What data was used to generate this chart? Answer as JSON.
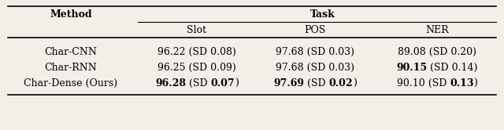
{
  "col_header_method": "Method",
  "col_header_task": "Task",
  "sub_headers": [
    "Slot",
    "POS",
    "NER"
  ],
  "rows": [
    {
      "method": "Char-CNN",
      "slot_normal": "96.22 (SD 0.08)",
      "slot_parts": null,
      "pos_normal": "97.68 (SD 0.03)",
      "pos_parts": null,
      "ner_normal": "89.08 (SD 0.20)",
      "ner_parts": null
    },
    {
      "method": "Char-RNN",
      "slot_normal": "96.25 (SD 0.09)",
      "slot_parts": null,
      "pos_normal": "97.68 (SD 0.03)",
      "pos_parts": null,
      "ner_normal": null,
      "ner_parts": [
        [
          "90.15",
          true
        ],
        [
          " (SD 0.14)",
          false
        ]
      ]
    },
    {
      "method": "Char-Dense (Ours)",
      "slot_normal": null,
      "slot_parts": [
        [
          "96.28",
          true
        ],
        [
          " (SD ",
          false
        ],
        [
          "0.07",
          true
        ],
        [
          ")",
          false
        ]
      ],
      "pos_normal": null,
      "pos_parts": [
        [
          "97.69",
          true
        ],
        [
          " (SD ",
          false
        ],
        [
          "0.02",
          true
        ],
        [
          ")",
          false
        ]
      ],
      "ner_normal": null,
      "ner_parts": [
        [
          "90.10 (SD ",
          false
        ],
        [
          "0.13",
          true
        ],
        [
          ")",
          false
        ]
      ]
    }
  ],
  "figsize": [
    6.4,
    1.66
  ],
  "dpi": 100,
  "fontsize": 9.0,
  "bg_color": "#f2efe9"
}
